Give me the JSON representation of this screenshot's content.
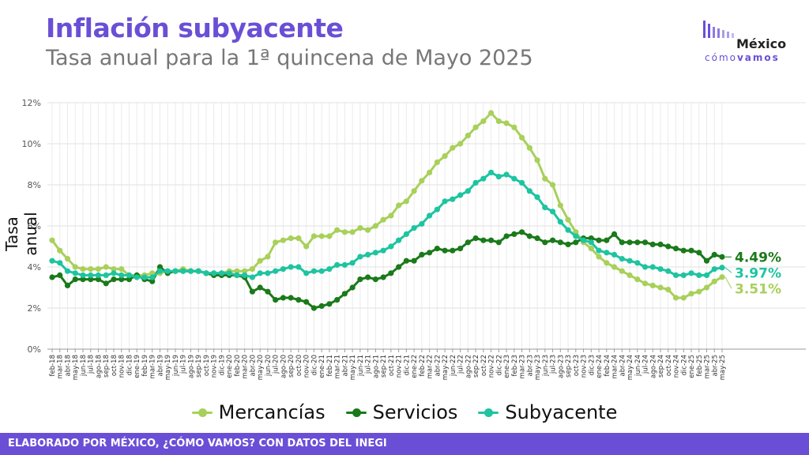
{
  "header": {
    "title": "Inflación subyacente",
    "subtitle": "Tasa anual para la 1ª quincena de Mayo 2025"
  },
  "logo": {
    "line1": "México",
    "line2a": "cómo",
    "line2b": "vamos"
  },
  "footer": {
    "text": "ELABORADO POR MÉXICO, ¿CÓMO VAMOS? CON DATOS DEL INEGI"
  },
  "colors": {
    "mercancias": "#a8d05a",
    "servicios": "#1a7a1a",
    "subyacente": "#1ec4a0",
    "accent": "#6a4fd6"
  },
  "chart_data": {
    "type": "line",
    "ylabel": "Tasa anual",
    "ylim": [
      0,
      12
    ],
    "yticks": [
      "0%",
      "2%",
      "4%",
      "6%",
      "8%",
      "10%",
      "12%"
    ],
    "grid": true,
    "legend_position": "bottom",
    "x": [
      "feb-18",
      "mar-18",
      "abr-18",
      "may-18",
      "jun-18",
      "jul-18",
      "ago-18",
      "sep-18",
      "oct-18",
      "nov-18",
      "dic-18",
      "ene-19",
      "feb-19",
      "mar-19",
      "abr-19",
      "may-19",
      "jun-19",
      "jul-19",
      "ago-19",
      "sep-19",
      "oct-19",
      "nov-19",
      "dic-19",
      "ene-20",
      "feb-20",
      "mar-20",
      "abr-20",
      "may-20",
      "jun-20",
      "jul-20",
      "ago-20",
      "sep-20",
      "oct-20",
      "nov-20",
      "dic-20",
      "ene-21",
      "feb-21",
      "mar-21",
      "abr-21",
      "may-21",
      "jun-21",
      "jul-21",
      "ago-21",
      "sep-21",
      "oct-21",
      "nov-21",
      "dic-21",
      "ene-22",
      "feb-22",
      "mar-22",
      "abr-22",
      "may-22",
      "jun-22",
      "jul-22",
      "ago-22",
      "sep-22",
      "oct-22",
      "nov-22",
      "dic-22",
      "ene-23",
      "feb-23",
      "mar-23",
      "abr-23",
      "may-23",
      "jun-23",
      "jul-23",
      "ago-23",
      "sep-23",
      "oct-23",
      "nov-23",
      "dic-23",
      "ene-24",
      "feb-24",
      "mar-24",
      "abr-24",
      "may-24",
      "jun-24",
      "jul-24",
      "ago-24",
      "sep-24",
      "oct-24",
      "nov-24",
      "dic-24",
      "ene-25",
      "feb-25",
      "mar-25",
      "abr-25",
      "may-25"
    ],
    "series": [
      {
        "name": "Mercancías",
        "color": "#a8d05a",
        "end_label": "3.51%",
        "values": [
          5.3,
          4.8,
          4.4,
          4.0,
          3.9,
          3.9,
          3.9,
          4.0,
          3.9,
          3.9,
          3.6,
          3.6,
          3.6,
          3.7,
          3.7,
          3.8,
          3.8,
          3.9,
          3.8,
          3.8,
          3.7,
          3.7,
          3.7,
          3.8,
          3.8,
          3.8,
          3.9,
          4.3,
          4.5,
          5.2,
          5.3,
          5.4,
          5.4,
          5.0,
          5.5,
          5.5,
          5.5,
          5.8,
          5.7,
          5.7,
          5.9,
          5.8,
          6.0,
          6.3,
          6.5,
          7.0,
          7.2,
          7.7,
          8.2,
          8.6,
          9.1,
          9.4,
          9.8,
          10.0,
          10.4,
          10.8,
          11.1,
          11.5,
          11.1,
          11.0,
          10.8,
          10.3,
          9.8,
          9.2,
          8.3,
          8.0,
          7.0,
          6.3,
          5.7,
          5.2,
          4.9,
          4.5,
          4.2,
          4.0,
          3.8,
          3.6,
          3.4,
          3.2,
          3.1,
          3.0,
          2.9,
          2.5,
          2.5,
          2.7,
          2.8,
          3.0,
          3.3,
          3.51
        ]
      },
      {
        "name": "Servicios",
        "color": "#1a7a1a",
        "end_label": "4.49%",
        "values": [
          3.5,
          3.6,
          3.1,
          3.4,
          3.4,
          3.4,
          3.4,
          3.2,
          3.4,
          3.4,
          3.4,
          3.6,
          3.4,
          3.3,
          4.0,
          3.7,
          3.8,
          3.8,
          3.8,
          3.8,
          3.7,
          3.6,
          3.6,
          3.6,
          3.6,
          3.5,
          2.8,
          3.0,
          2.8,
          2.4,
          2.5,
          2.5,
          2.4,
          2.3,
          2.0,
          2.1,
          2.2,
          2.4,
          2.7,
          3.0,
          3.4,
          3.5,
          3.4,
          3.5,
          3.7,
          4.0,
          4.3,
          4.3,
          4.6,
          4.7,
          4.9,
          4.8,
          4.8,
          4.9,
          5.2,
          5.4,
          5.3,
          5.3,
          5.2,
          5.5,
          5.6,
          5.7,
          5.5,
          5.4,
          5.2,
          5.3,
          5.2,
          5.1,
          5.2,
          5.4,
          5.4,
          5.3,
          5.3,
          5.6,
          5.2,
          5.2,
          5.2,
          5.2,
          5.1,
          5.1,
          5.0,
          4.9,
          4.8,
          4.8,
          4.7,
          4.3,
          4.6,
          4.49
        ]
      },
      {
        "name": "Subyacente",
        "color": "#1ec4a0",
        "end_label": "3.97%",
        "values": [
          4.3,
          4.2,
          3.8,
          3.7,
          3.6,
          3.6,
          3.6,
          3.6,
          3.7,
          3.6,
          3.6,
          3.5,
          3.5,
          3.5,
          3.8,
          3.8,
          3.8,
          3.8,
          3.8,
          3.8,
          3.7,
          3.7,
          3.7,
          3.7,
          3.6,
          3.6,
          3.5,
          3.7,
          3.7,
          3.8,
          3.9,
          4.0,
          4.0,
          3.7,
          3.8,
          3.8,
          3.9,
          4.1,
          4.1,
          4.2,
          4.5,
          4.6,
          4.7,
          4.8,
          5.0,
          5.3,
          5.6,
          5.9,
          6.1,
          6.5,
          6.8,
          7.2,
          7.3,
          7.5,
          7.7,
          8.1,
          8.3,
          8.6,
          8.4,
          8.5,
          8.3,
          8.1,
          7.7,
          7.4,
          6.9,
          6.7,
          6.2,
          5.8,
          5.5,
          5.3,
          5.2,
          4.8,
          4.7,
          4.6,
          4.4,
          4.3,
          4.2,
          4.0,
          4.0,
          3.9,
          3.8,
          3.6,
          3.6,
          3.7,
          3.6,
          3.6,
          3.9,
          3.97
        ]
      }
    ]
  }
}
